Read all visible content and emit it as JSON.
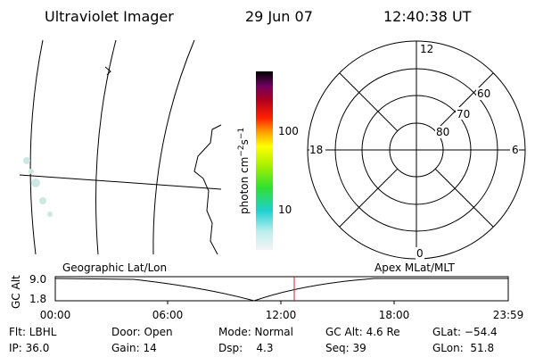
{
  "header": {
    "title": "Ultraviolet Imager",
    "date": "29 Jun 07",
    "time": "12:40:38 UT"
  },
  "colorbar": {
    "unit": [
      "photon cm",
      "−2",
      "s",
      "−1"
    ],
    "ticks": [
      "100",
      "10"
    ]
  },
  "polar": {
    "top": "12",
    "bottom": "0",
    "left": "18",
    "right": "6",
    "lat_labels": [
      "60",
      "70",
      "80"
    ]
  },
  "orbit": {
    "left_title": "Geographic Lat/Lon",
    "right_title": "Apex MLat/MLT",
    "y_label": "GC Alt",
    "y_ticks": [
      "9.0",
      "1.8"
    ],
    "x_ticks": [
      "00:00",
      "06:00",
      "12:00",
      "18:00",
      "23:59"
    ]
  },
  "info": {
    "rows": [
      [
        "Flt: LBHL",
        "Door: Open",
        "Mode: Normal",
        "GC Alt: 4.6 Re",
        "GLat: −54.4"
      ],
      [
        "IP: 36.0",
        "Gain: 14",
        "Dsp:    4.3",
        "Seq: 39",
        "GLon:  51.8"
      ]
    ]
  }
}
